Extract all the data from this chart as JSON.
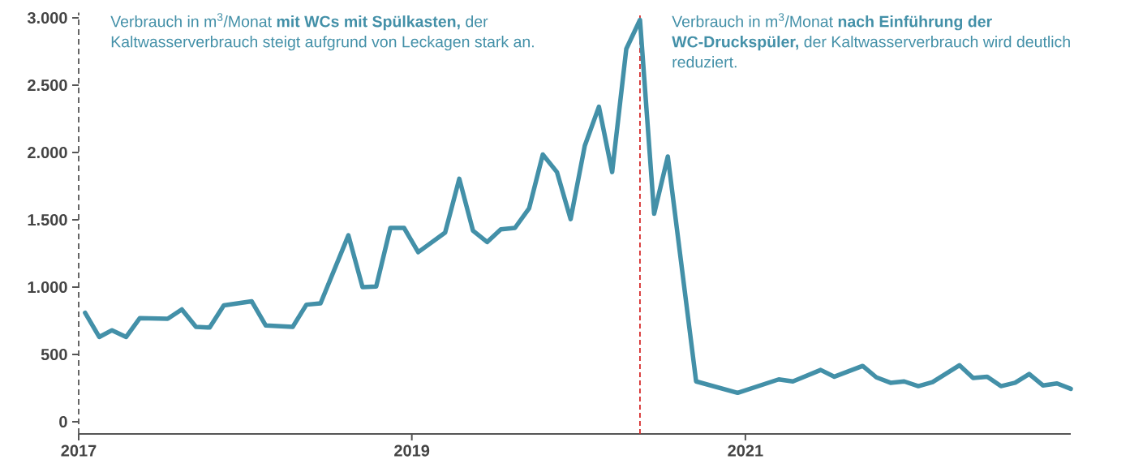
{
  "chart_data": {
    "type": "line",
    "x": [
      "2017-01-15",
      "2017-02-15",
      "2017-03-15",
      "2017-04-15",
      "2017-05-15",
      "2017-07-15",
      "2017-08-15",
      "2017-09-15",
      "2017-10-15",
      "2017-11-15",
      "2018-01-15",
      "2018-02-15",
      "2018-04-15",
      "2018-05-15",
      "2018-06-15",
      "2018-08-15",
      "2018-09-15",
      "2018-10-15",
      "2018-11-15",
      "2018-12-15",
      "2019-01-15",
      "2019-03-15",
      "2019-04-15",
      "2019-05-15",
      "2019-06-15",
      "2019-07-15",
      "2019-08-15",
      "2019-09-15",
      "2019-10-15",
      "2019-11-15",
      "2019-12-15",
      "2020-01-15",
      "2020-02-15",
      "2020-03-15",
      "2020-04-15",
      "2020-05-15",
      "2020-06-15",
      "2020-07-15",
      "2020-09-15",
      "2020-12-15",
      "2021-03-15",
      "2021-04-15",
      "2021-06-15",
      "2021-07-15",
      "2021-09-15",
      "2021-10-15",
      "2021-11-15",
      "2021-12-15",
      "2022-01-15",
      "2022-02-15",
      "2022-04-15",
      "2022-05-15",
      "2022-06-15",
      "2022-07-15",
      "2022-08-15",
      "2022-09-15",
      "2022-10-15",
      "2022-11-15",
      "2022-12-15"
    ],
    "series": [
      {
        "color": "#4390a8",
        "values": [
          810,
          630,
          680,
          630,
          770,
          765,
          835,
          705,
          700,
          865,
          895,
          715,
          705,
          870,
          880,
          1385,
          1000,
          1005,
          1440,
          1440,
          1260,
          1405,
          1805,
          1420,
          1335,
          1430,
          1440,
          1585,
          1985,
          1855,
          1505,
          2050,
          2340,
          1855,
          2770,
          2985,
          1545,
          1970,
          300,
          215,
          315,
          300,
          385,
          335,
          415,
          330,
          290,
          300,
          265,
          295,
          420,
          325,
          335,
          265,
          290,
          355,
          270,
          285,
          245
        ]
      }
    ],
    "xlim": [
      "2017-01-01",
      "2022-12-15"
    ],
    "xticks": [
      "2017",
      "2019",
      "2021"
    ],
    "ylim": [
      -90,
      3040
    ],
    "yticks": [
      {
        "value": 0,
        "label": "0"
      },
      {
        "value": 500,
        "label": "500"
      },
      {
        "value": 1000,
        "label": "1.000"
      },
      {
        "value": 1500,
        "label": "1.500"
      },
      {
        "value": 2000,
        "label": "2.000"
      },
      {
        "value": 2500,
        "label": "2.500"
      },
      {
        "value": 3000,
        "label": "3.000"
      }
    ],
    "ref_lines": [
      {
        "axis": "x",
        "value": "2020-05-15",
        "color": "#d62b2b",
        "line_style": "dashed"
      }
    ],
    "annotations": [
      "Verbrauch in m$^{3}$/Monat **mit WCs mit Spülkasten,** der Kaltwasserverbrauch steigt aufgrund von Leckagen stark an.",
      "Verbrauch in m$^{3}$/Monat **nach Einführung der WC-Druckspüler,** der Kaltwasserverbrauch wird deutlich reduziert."
    ],
    "grid": false
  }
}
